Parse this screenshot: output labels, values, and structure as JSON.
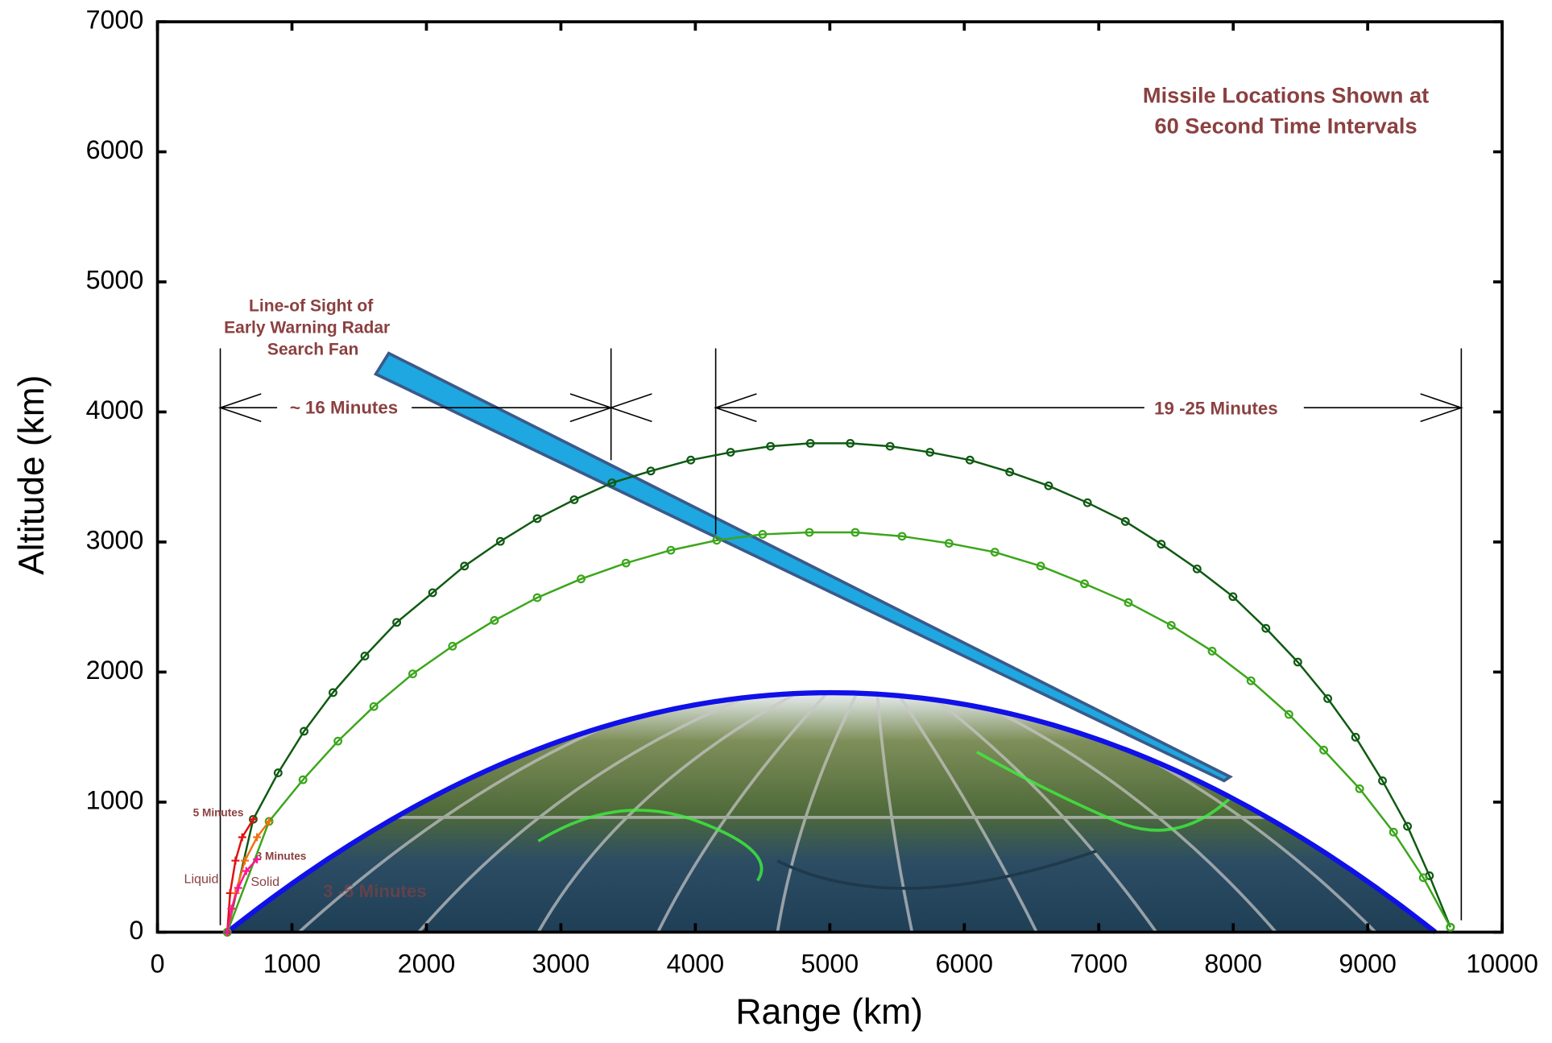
{
  "chart_data": {
    "type": "line",
    "xlabel": "Range (km)",
    "ylabel": "Altitude (km)",
    "xlim": [
      0,
      10000
    ],
    "ylim": [
      0,
      7000
    ],
    "xticks": [
      0,
      1000,
      2000,
      3000,
      4000,
      5000,
      6000,
      7000,
      8000,
      9000,
      10000
    ],
    "yticks": [
      0,
      1000,
      2000,
      3000,
      4000,
      5000,
      6000,
      7000
    ],
    "annotations": [
      "Missile Locations Shown at",
      "60 Second Time Intervals",
      "Line-of Sight of",
      "Early Warning Radar",
      "Search Fan",
      "~ 16  Minutes",
      "19 -25 Minutes",
      "5 Minutes",
      "3 Minutes",
      "Liquid",
      "Solid",
      "3 -5 Minutes"
    ],
    "series": [
      {
        "color": "#0f5a12",
        "marker": "circle",
        "x": [
          519,
          712,
          897,
          1090,
          1305,
          1542,
          1779,
          2046,
          2283,
          2550,
          2824,
          3099,
          3380,
          3669,
          3966,
          4262,
          4559,
          4855,
          5152,
          5448,
          5745,
          6042,
          6338,
          6627,
          6916,
          7198,
          7465,
          7731,
          7998,
          8243,
          8480,
          8703,
          8910,
          9110,
          9296,
          9459,
          9615
        ],
        "values": [
          0,
          868,
          1225,
          1545,
          1842,
          2123,
          2382,
          2610,
          2815,
          3005,
          3180,
          3325,
          3455,
          3546,
          3630,
          3690,
          3736,
          3759,
          3759,
          3736,
          3690,
          3630,
          3538,
          3432,
          3302,
          3158,
          2983,
          2793,
          2580,
          2336,
          2077,
          1796,
          1499,
          1164,
          814,
          434,
          38
        ]
      },
      {
        "color": "#3aa61a",
        "marker": "circle",
        "x": [
          519,
          830,
          1082,
          1342,
          1609,
          1898,
          2194,
          2506,
          2824,
          3150,
          3484,
          3818,
          4159,
          4500,
          4848,
          5189,
          5537,
          5886,
          6227,
          6568,
          6894,
          7220,
          7539,
          7843,
          8132,
          8414,
          8673,
          8940,
          9192,
          9414,
          9615
        ],
        "values": [
          0,
          852,
          1172,
          1469,
          1735,
          1986,
          2199,
          2397,
          2572,
          2716,
          2838,
          2937,
          3013,
          3059,
          3074,
          3074,
          3044,
          2990,
          2922,
          2815,
          2679,
          2534,
          2359,
          2161,
          1933,
          1674,
          1400,
          1103,
          769,
          419,
          38
        ]
      },
      {
        "color": "#e01010",
        "marker": "plus",
        "x": [
          519,
          540,
          580,
          630,
          712
        ],
        "values": [
          0,
          300,
          550,
          730,
          868
        ]
      },
      {
        "color": "#f07010",
        "marker": "plus",
        "x": [
          519,
          580,
          650,
          740,
          830
        ],
        "values": [
          0,
          300,
          550,
          730,
          852
        ]
      },
      {
        "color": "#ff1493",
        "marker": "plus",
        "x": [
          519,
          550,
          600,
          660,
          740
        ],
        "values": [
          0,
          180,
          340,
          470,
          560
        ]
      }
    ]
  }
}
